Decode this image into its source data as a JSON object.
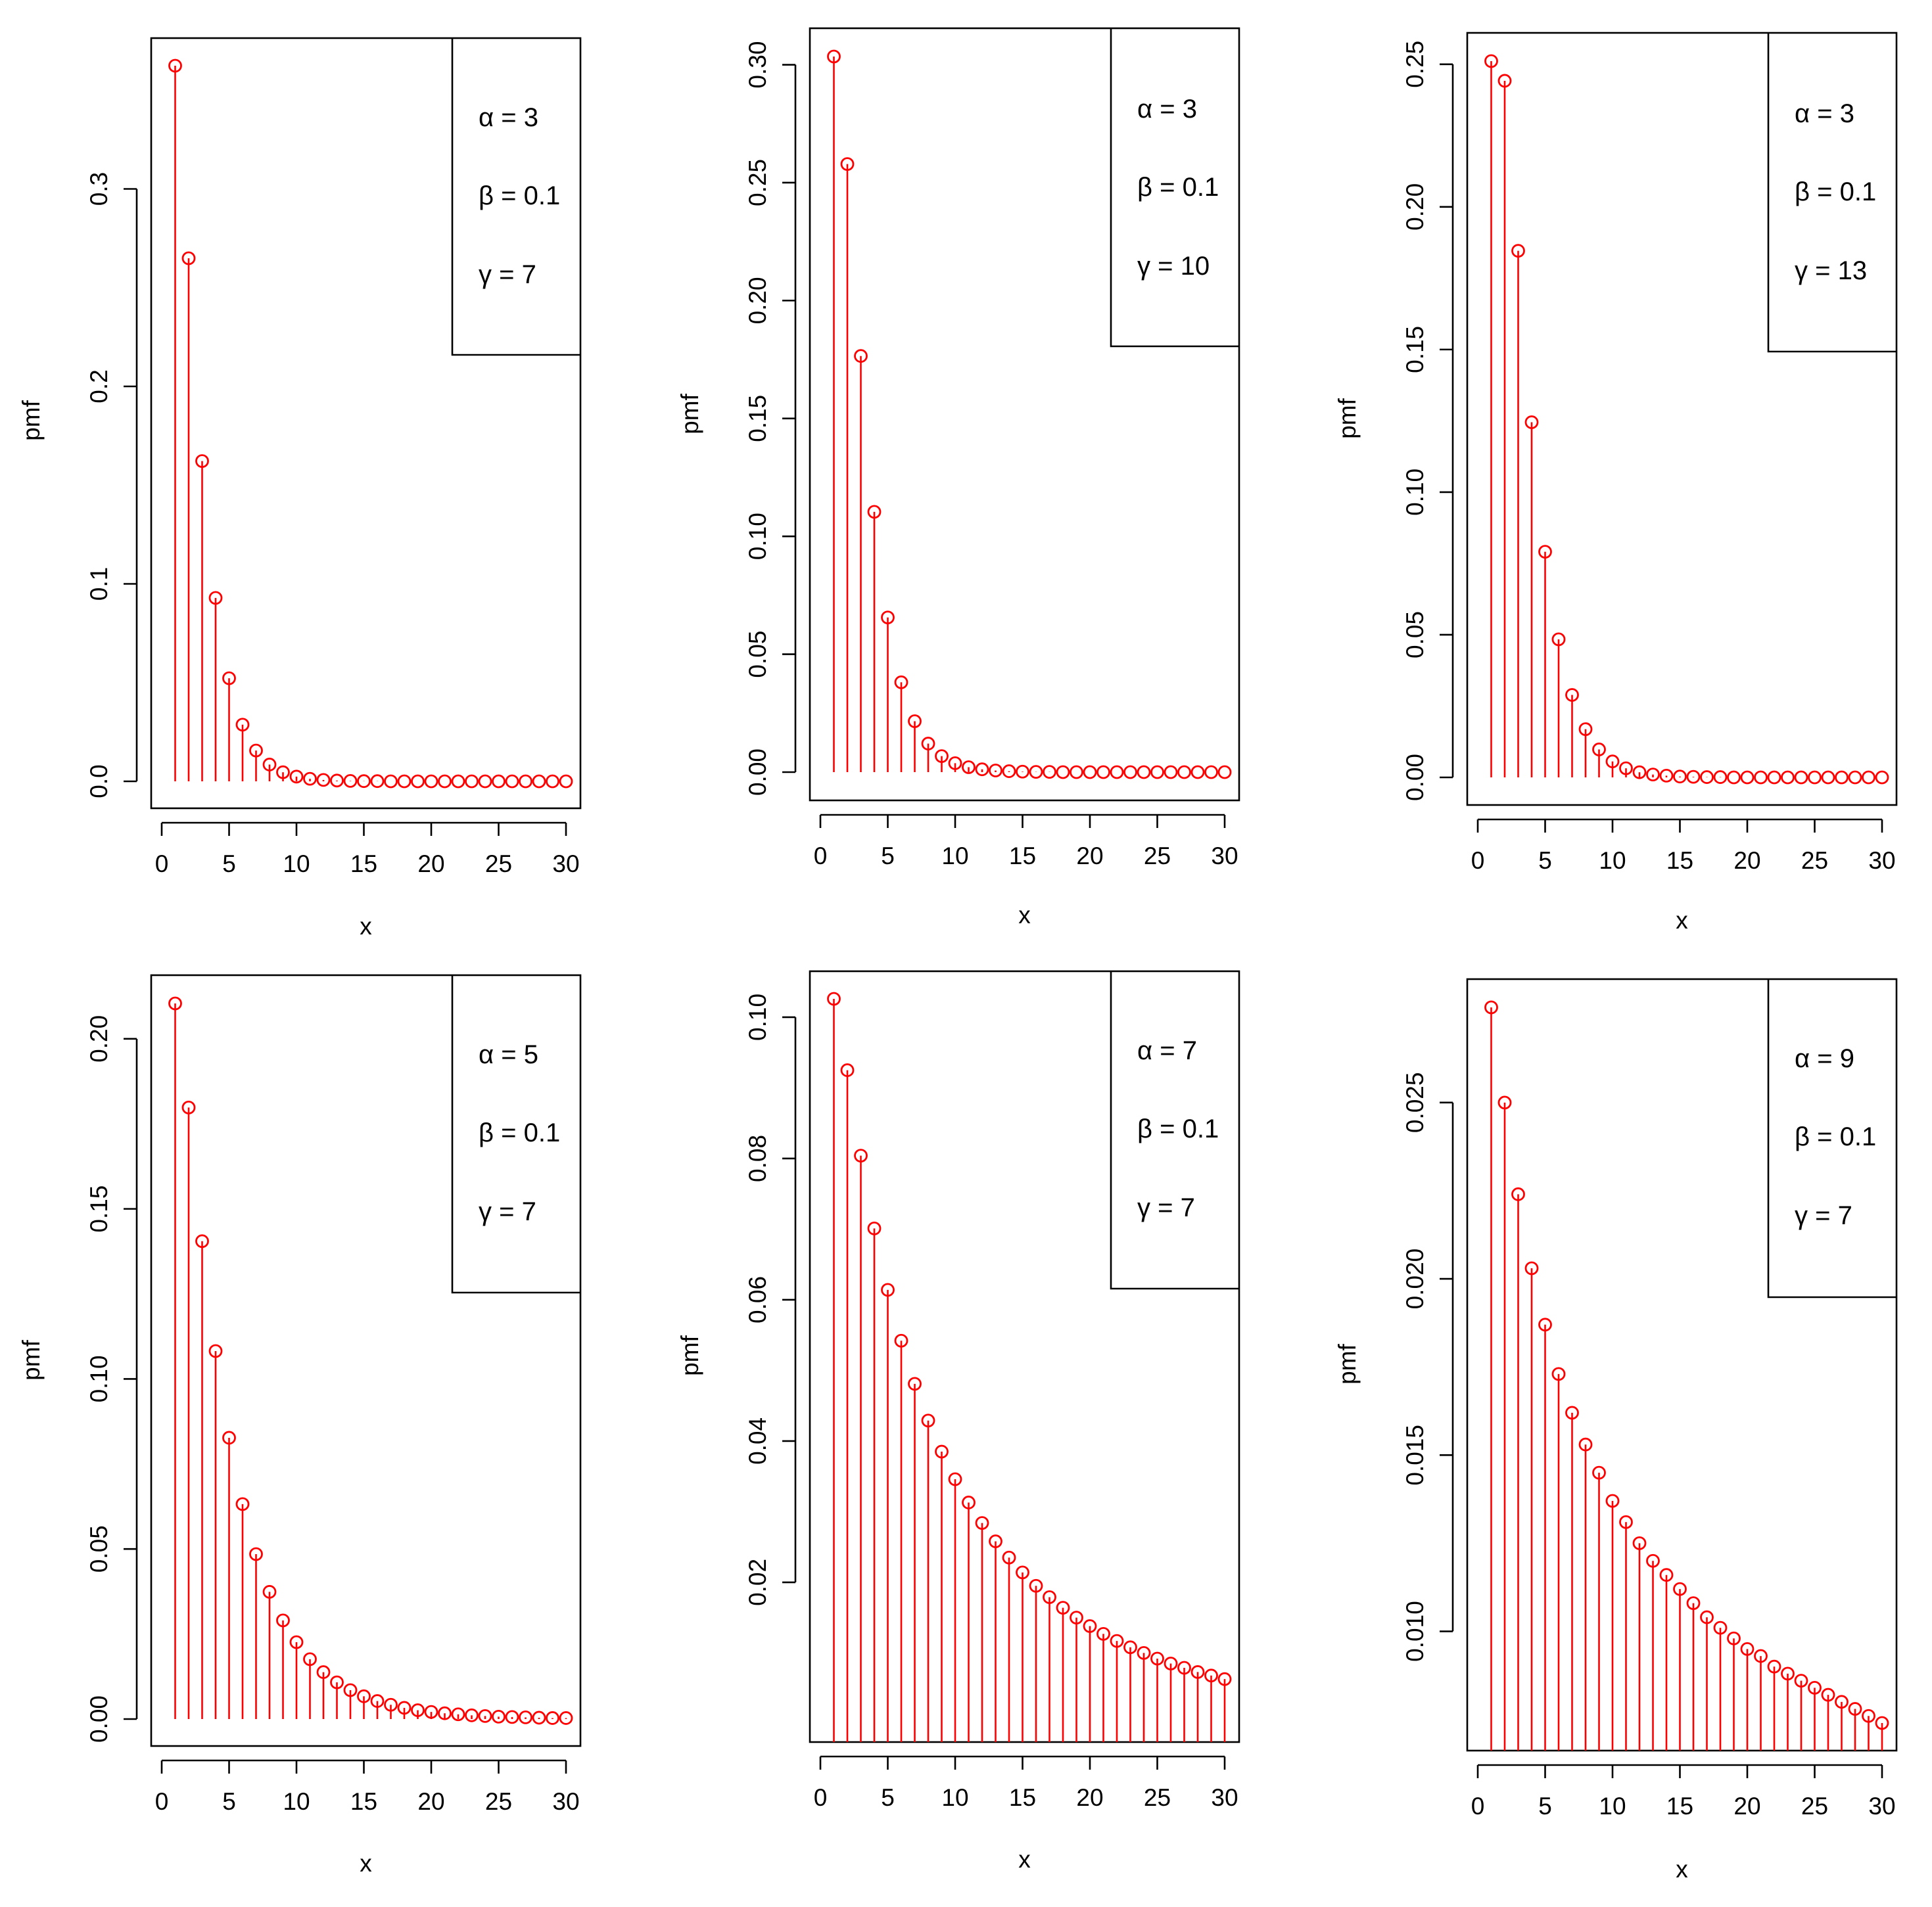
{
  "colors": {
    "series": "#ff0000",
    "axis": "#000000"
  },
  "chart_data": [
    {
      "type": "stem",
      "title": "",
      "xlabel": "x",
      "ylabel": "pmf",
      "xlim": [
        0,
        30
      ],
      "ylim": [
        0,
        0.3624
      ],
      "x_ticks": [
        "0",
        "5",
        "10",
        "15",
        "20",
        "25",
        "30"
      ],
      "y_ticks": [
        0.0,
        0.1,
        0.2,
        0.3
      ],
      "y_tick_labels": [
        "0.0",
        "0.1",
        "0.2",
        "0.3"
      ],
      "legend": [
        "α = 3",
        "β = 0.1",
        "γ = 7"
      ],
      "legend_position": "top-right",
      "x": [
        1,
        2,
        3,
        4,
        5,
        6,
        7,
        8,
        9,
        10,
        11,
        12,
        13,
        14,
        15,
        16,
        17,
        18,
        19,
        20,
        21,
        22,
        23,
        24,
        25,
        26,
        27,
        28,
        29,
        30
      ],
      "values": [
        0.3624,
        0.2649,
        0.1622,
        0.0929,
        0.0522,
        0.0287,
        0.0156,
        0.0085,
        0.0046,
        0.0024,
        0.0013,
        0.0007,
        0.0004,
        0.0002,
        0.0001,
        0.0001,
        0,
        0,
        0,
        0,
        0,
        0,
        0,
        0,
        0,
        0,
        0,
        0,
        0,
        0
      ]
    },
    {
      "type": "stem",
      "title": "",
      "xlabel": "x",
      "ylabel": "pmf",
      "xlim": [
        0,
        30
      ],
      "ylim": [
        0,
        0.3035
      ],
      "x_ticks": [
        "0",
        "5",
        "10",
        "15",
        "20",
        "25",
        "30"
      ],
      "y_ticks": [
        0.0,
        0.05,
        0.1,
        0.15,
        0.2,
        0.25,
        0.3
      ],
      "y_tick_labels": [
        "0.00",
        "0.05",
        "0.10",
        "0.15",
        "0.20",
        "0.25",
        "0.30"
      ],
      "legend": [
        "α = 3",
        "β = 0.1",
        "γ = 10"
      ],
      "legend_position": "top-right",
      "x": [
        1,
        2,
        3,
        4,
        5,
        6,
        7,
        8,
        9,
        10,
        11,
        12,
        13,
        14,
        15,
        16,
        17,
        18,
        19,
        20,
        21,
        22,
        23,
        24,
        25,
        26,
        27,
        28,
        29,
        30
      ],
      "values": [
        0.3035,
        0.2579,
        0.1765,
        0.1104,
        0.0656,
        0.0381,
        0.0216,
        0.0121,
        0.0068,
        0.0038,
        0.0021,
        0.0012,
        0.0007,
        0.0004,
        0.0002,
        0.0001,
        0.0001,
        0,
        0,
        0,
        0,
        0,
        0,
        0,
        0,
        0,
        0,
        0,
        0,
        0
      ]
    },
    {
      "type": "stem",
      "title": "",
      "xlabel": "x",
      "ylabel": "pmf",
      "xlim": [
        0,
        30
      ],
      "ylim": [
        0,
        0.2511
      ],
      "x_ticks": [
        "0",
        "5",
        "10",
        "15",
        "20",
        "25",
        "30"
      ],
      "y_ticks": [
        0.0,
        0.05,
        0.1,
        0.15,
        0.2,
        0.25
      ],
      "y_tick_labels": [
        "0.00",
        "0.05",
        "0.10",
        "0.15",
        "0.20",
        "0.25"
      ],
      "legend": [
        "α = 3",
        "β = 0.1",
        "γ = 13"
      ],
      "legend_position": "top-right",
      "x": [
        1,
        2,
        3,
        4,
        5,
        6,
        7,
        8,
        9,
        10,
        11,
        12,
        13,
        14,
        15,
        16,
        17,
        18,
        19,
        20,
        21,
        22,
        23,
        24,
        25,
        26,
        27,
        28,
        29,
        30
      ],
      "values": [
        0.2511,
        0.2442,
        0.1846,
        0.1245,
        0.0791,
        0.0484,
        0.0289,
        0.0169,
        0.0098,
        0.0056,
        0.0032,
        0.0018,
        0.001,
        0.0006,
        0.0003,
        0.0002,
        0.0001,
        0.0001,
        0,
        0,
        0,
        0,
        0,
        0,
        0,
        0,
        0,
        0,
        0,
        0
      ]
    },
    {
      "type": "stem",
      "title": "",
      "xlabel": "x",
      "ylabel": "pmf",
      "xlim": [
        0,
        30
      ],
      "ylim": [
        0,
        0.2104
      ],
      "x_ticks": [
        "0",
        "5",
        "10",
        "15",
        "20",
        "25",
        "30"
      ],
      "y_ticks": [
        0.0,
        0.05,
        0.1,
        0.15,
        0.2
      ],
      "y_tick_labels": [
        "0.00",
        "0.05",
        "0.10",
        "0.15",
        "0.20"
      ],
      "legend": [
        "α = 5",
        "β = 0.1",
        "γ = 7"
      ],
      "legend_position": "top-right",
      "x": [
        1,
        2,
        3,
        4,
        5,
        6,
        7,
        8,
        9,
        10,
        11,
        12,
        13,
        14,
        15,
        16,
        17,
        18,
        19,
        20,
        21,
        22,
        23,
        24,
        25,
        26,
        27,
        28,
        29,
        30
      ],
      "values": [
        0.2104,
        0.1798,
        0.1405,
        0.1082,
        0.0827,
        0.0632,
        0.0485,
        0.0374,
        0.029,
        0.0226,
        0.0176,
        0.0138,
        0.0108,
        0.0085,
        0.0067,
        0.0053,
        0.0042,
        0.0033,
        0.0026,
        0.0021,
        0.0017,
        0.0014,
        0.0011,
        0.0009,
        0.0007,
        0.0006,
        0.0005,
        0.0004,
        0.0003,
        0.0003
      ]
    },
    {
      "type": "stem",
      "title": "",
      "xlabel": "x",
      "ylabel": "pmf",
      "xlim": [
        0,
        30
      ],
      "ylim": [
        0.0012,
        0.1026
      ],
      "x_ticks": [
        "0",
        "5",
        "10",
        "15",
        "20",
        "25",
        "30"
      ],
      "y_ticks": [
        0.02,
        0.04,
        0.06,
        0.08,
        0.1
      ],
      "y_tick_labels": [
        "0.02",
        "0.04",
        "0.06",
        "0.08",
        "0.10"
      ],
      "legend": [
        "α = 7",
        "β = 0.1",
        "γ = 7"
      ],
      "legend_position": "top-right",
      "x": [
        1,
        2,
        3,
        4,
        5,
        6,
        7,
        8,
        9,
        10,
        11,
        12,
        13,
        14,
        15,
        16,
        17,
        18,
        19,
        20,
        21,
        22,
        23,
        24,
        25,
        26,
        27,
        28,
        29,
        30
      ],
      "values": [
        0.1026,
        0.0925,
        0.0804,
        0.0701,
        0.0614,
        0.0542,
        0.0481,
        0.0429,
        0.0385,
        0.0346,
        0.0313,
        0.0284,
        0.0258,
        0.0235,
        0.0214,
        0.0195,
        0.0179,
        0.0164,
        0.015,
        0.0138,
        0.0127,
        0.0117,
        0.0108,
        0.01,
        0.0092,
        0.0085,
        0.0079,
        0.0073,
        0.0068,
        0.0063
      ]
    },
    {
      "type": "stem",
      "title": "",
      "xlabel": "x",
      "ylabel": "pmf",
      "xlim": [
        0,
        30
      ],
      "ylim": [
        0.0074,
        0.0277
      ],
      "x_ticks": [
        "0",
        "5",
        "10",
        "15",
        "20",
        "25",
        "30"
      ],
      "y_ticks": [
        0.01,
        0.015,
        0.02,
        0.025
      ],
      "y_tick_labels": [
        "0.010",
        "0.015",
        "0.020",
        "0.025"
      ],
      "legend": [
        "α = 9",
        "β = 0.1",
        "γ = 7"
      ],
      "legend_position": "top-right",
      "x": [
        1,
        2,
        3,
        4,
        5,
        6,
        7,
        8,
        9,
        10,
        11,
        12,
        13,
        14,
        15,
        16,
        17,
        18,
        19,
        20,
        21,
        22,
        23,
        24,
        25,
        26,
        27,
        28,
        29,
        30
      ],
      "values": [
        0.0277,
        0.025,
        0.0224,
        0.0203,
        0.0187,
        0.0173,
        0.0162,
        0.0153,
        0.0145,
        0.0137,
        0.0131,
        0.0125,
        0.012,
        0.0116,
        0.0112,
        0.0108,
        0.0104,
        0.0101,
        0.0098,
        0.0095,
        0.0093,
        0.009,
        0.0088,
        0.0086,
        0.0084,
        0.0082,
        0.008,
        0.0078,
        0.0076,
        0.0074
      ]
    }
  ]
}
